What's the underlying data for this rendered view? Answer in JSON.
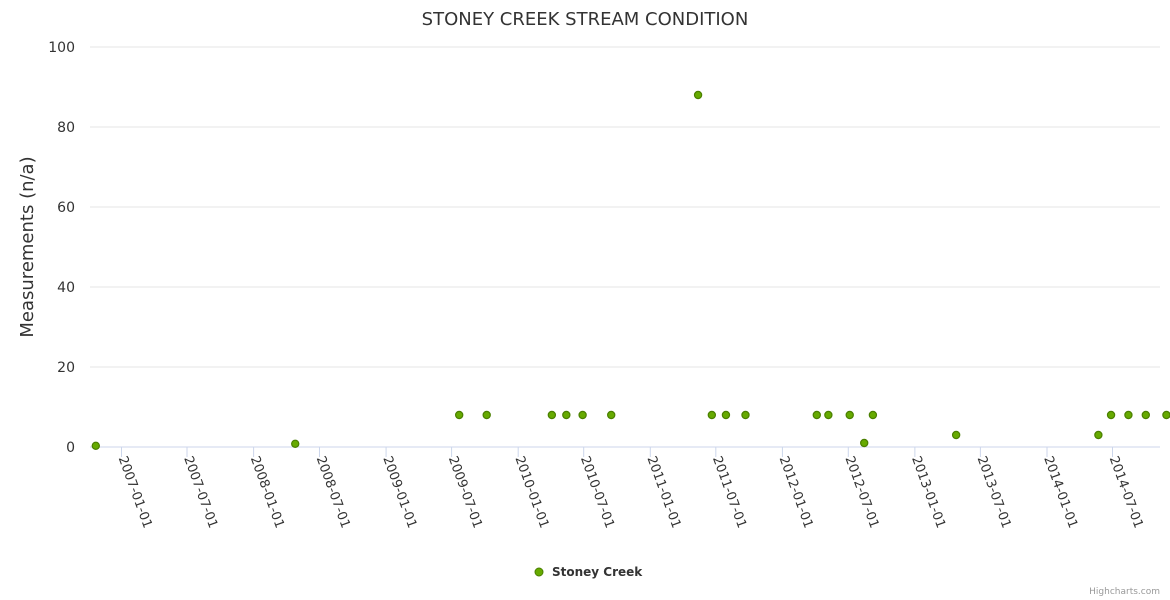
{
  "chart_data": {
    "type": "scatter",
    "title": "STONEY CREEK STREAM CONDITION",
    "ylabel": "Measurements (n/a)",
    "xlabel": "",
    "ylim": [
      0,
      100
    ],
    "yticks": [
      "0",
      "20",
      "40",
      "60",
      "80",
      "100"
    ],
    "xticks": [
      "2007-01-01",
      "2007-07-01",
      "2008-01-01",
      "2008-07-01",
      "2009-01-01",
      "2009-07-01",
      "2010-01-01",
      "2010-07-01",
      "2011-01-01",
      "2011-07-01",
      "2012-01-01",
      "2012-07-01",
      "2013-01-01",
      "2013-07-01",
      "2014-01-01",
      "2014-07-01"
    ],
    "grid": true,
    "legend": "bottom-center",
    "color": "#66aa00",
    "series": [
      {
        "name": "Stoney Creek",
        "points": [
          {
            "x": "2006-10-22",
            "y": 0.3
          },
          {
            "x": "2008-04-25",
            "y": 0.8
          },
          {
            "x": "2009-07-22",
            "y": 8
          },
          {
            "x": "2009-10-06",
            "y": 8
          },
          {
            "x": "2010-04-04",
            "y": 8
          },
          {
            "x": "2010-05-14",
            "y": 8
          },
          {
            "x": "2010-06-28",
            "y": 8
          },
          {
            "x": "2010-09-15",
            "y": 8
          },
          {
            "x": "2011-05-13",
            "y": 88
          },
          {
            "x": "2011-06-20",
            "y": 8
          },
          {
            "x": "2011-07-29",
            "y": 8
          },
          {
            "x": "2011-09-21",
            "y": 8
          },
          {
            "x": "2012-04-05",
            "y": 8
          },
          {
            "x": "2012-05-07",
            "y": 8
          },
          {
            "x": "2012-07-05",
            "y": 8
          },
          {
            "x": "2012-08-14",
            "y": 1
          },
          {
            "x": "2012-09-07",
            "y": 8
          },
          {
            "x": "2013-04-25",
            "y": 3
          },
          {
            "x": "2014-05-23",
            "y": 3
          },
          {
            "x": "2014-06-27",
            "y": 8
          },
          {
            "x": "2014-08-14",
            "y": 8
          },
          {
            "x": "2014-10-01",
            "y": 8
          },
          {
            "x": "2014-11-27",
            "y": 8
          }
        ]
      }
    ]
  },
  "credits": "Highcharts.com"
}
